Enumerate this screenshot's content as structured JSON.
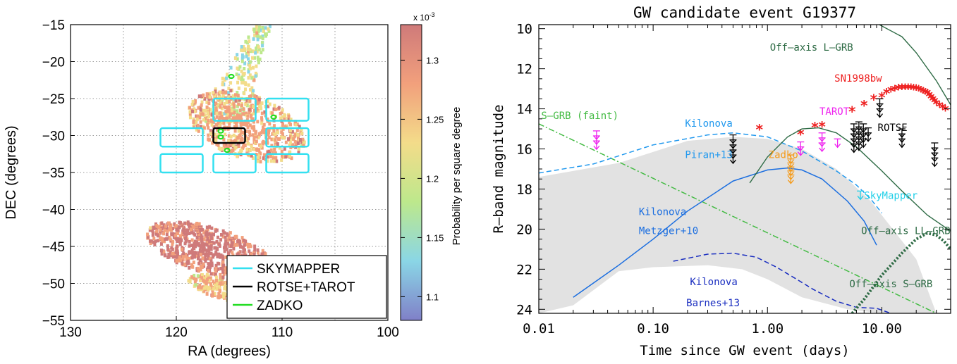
{
  "chart_data": [
    {
      "type": "heatmap",
      "xlabel": "RA (degrees)",
      "ylabel": "DEC (degrees)",
      "xlim": [
        130,
        100
      ],
      "ylim": [
        -55,
        -15
      ],
      "xticks": [
        "130",
        "120",
        "110",
        "100"
      ],
      "yticks": [
        "-15",
        "-20",
        "-25",
        "-30",
        "-35",
        "-40",
        "-45",
        "-50",
        "-55"
      ],
      "grid": true,
      "colorbar": {
        "label": "Probability per square degree",
        "exponent": "x 10",
        "exponent_power": "-3",
        "range": [
          1.08,
          1.33
        ],
        "ticks": [
          "1.3",
          "1.25",
          "1.2",
          "1.15",
          "1.1"
        ],
        "colors": [
          "#8080c8",
          "#8ad6e6",
          "#bde88c",
          "#f3dc8a",
          "#f2a07c",
          "#cf7a7a"
        ]
      },
      "probability_regions": [
        {
          "ra": [
            116,
            112
          ],
          "dec_centerline": [
            -28,
            -15
          ],
          "value": 1.2,
          "kind": "upper-streak"
        },
        {
          "ra": [
            119,
            108
          ],
          "dec": [
            -33,
            -24
          ],
          "value": 1.27,
          "kind": "central-blob"
        },
        {
          "ra": [
            123,
            111
          ],
          "dec": [
            -48.5,
            -42
          ],
          "value": 1.32,
          "kind": "lower-ellipse"
        },
        {
          "ra": [
            119,
            112
          ],
          "dec": [
            -52,
            -49
          ],
          "value": 1.25,
          "kind": "lower-small-ellipse"
        }
      ],
      "fields": [
        {
          "name": "SKYMAPPER",
          "color": "#33e0f0",
          "boxes": [
            [
              121.5,
              117.5,
              -31.5,
              -29
            ],
            [
              121.5,
              117.5,
              -35,
              -32.5
            ],
            [
              116.5,
              112.5,
              -28,
              -25
            ],
            [
              116.5,
              112.5,
              -35,
              -32.5
            ],
            [
              111.5,
              107.5,
              -31.5,
              -29
            ],
            [
              111.5,
              107.5,
              -35,
              -32.5
            ],
            [
              111.5,
              107.5,
              -28,
              -25
            ]
          ]
        },
        {
          "name": "ROTSE+TAROT",
          "color": "#000000",
          "boxes": [
            [
              116.5,
              113.5,
              -31,
              -29
            ]
          ]
        },
        {
          "name": "ZADKO",
          "color": "#22dd22",
          "points": [
            [
              114.8,
              -22
            ],
            [
              115.8,
              -29.4
            ],
            [
              115.8,
              -30.2
            ],
            [
              115.2,
              -32
            ],
            [
              110.8,
              -27.5
            ]
          ]
        }
      ],
      "legend": [
        "SKYMAPPER",
        "ROTSE+TAROT",
        "ZADKO"
      ],
      "legend_position": "bottom-right"
    },
    {
      "type": "line",
      "title": "GW candidate event G19377",
      "xlabel": "Time since GW event (days)",
      "ylabel": "R–band magnitude",
      "xscale": "log",
      "xlim": [
        0.01,
        40
      ],
      "ylim": [
        24.2,
        9.8
      ],
      "xticks": [
        "0.01",
        "0.10",
        "1.00",
        "10.00"
      ],
      "xtick_values": [
        0.01,
        0.1,
        1,
        10
      ],
      "yticks": [
        "10",
        "12",
        "14",
        "16",
        "18",
        "20",
        "22",
        "24"
      ],
      "ytick_values": [
        10,
        12,
        14,
        16,
        18,
        20,
        22,
        24
      ],
      "shaded_band": {
        "upper": [
          [
            0.01,
            17.4
          ],
          [
            0.05,
            16.7
          ],
          [
            0.2,
            15.6
          ],
          [
            0.5,
            15.4
          ],
          [
            1.0,
            15.5
          ],
          [
            2.0,
            16.0
          ],
          [
            4.0,
            17.0
          ],
          [
            8.0,
            18.6
          ],
          [
            20.0,
            21.5
          ],
          [
            30.0,
            24.2
          ]
        ],
        "lower": [
          [
            0.01,
            24.2
          ],
          [
            0.02,
            23.8
          ],
          [
            0.05,
            22.1
          ],
          [
            0.1,
            21.9
          ],
          [
            0.3,
            21.8
          ],
          [
            0.6,
            22.0
          ],
          [
            1.0,
            22.5
          ],
          [
            2.0,
            23.4
          ],
          [
            5.0,
            24.0
          ],
          [
            10.0,
            24.2
          ]
        ],
        "color": "#e2e2e2"
      },
      "series": [
        {
          "name": "Off-axis L-GRB",
          "style": "solid",
          "color": "#2e6b45",
          "points": [
            [
              9.5,
              9.8
            ],
            [
              15,
              10.4
            ],
            [
              20,
              11.2
            ],
            [
              30,
              12.6
            ],
            [
              40,
              13.8
            ]
          ]
        },
        {
          "name": "SN1998bw",
          "style": "star",
          "color": "#ee2222",
          "points": [
            [
              0.85,
              15.0
            ],
            [
              1.95,
              15.25
            ],
            [
              2.6,
              14.9
            ],
            [
              3.0,
              14.85
            ],
            [
              5.5,
              14.1
            ],
            [
              7.0,
              13.8
            ],
            [
              8.5,
              13.5
            ],
            [
              10,
              13.4
            ],
            [
              11,
              13.2
            ],
            [
              12,
              13.1
            ],
            [
              13,
              13.05
            ],
            [
              14,
              13.0
            ],
            [
              15,
              12.98
            ],
            [
              16,
              12.97
            ],
            [
              17,
              12.97
            ],
            [
              18,
              12.98
            ],
            [
              19,
              13.0
            ],
            [
              20,
              13.02
            ],
            [
              21,
              13.05
            ],
            [
              22,
              13.1
            ],
            [
              23,
              13.15
            ],
            [
              24,
              13.2
            ],
            [
              25,
              13.25
            ],
            [
              26,
              13.35
            ],
            [
              27,
              13.45
            ],
            [
              28,
              13.55
            ],
            [
              29,
              13.65
            ],
            [
              30,
              13.75
            ],
            [
              32,
              13.85
            ],
            [
              34,
              13.95
            ],
            [
              36,
              14.05
            ]
          ]
        },
        {
          "name": "S-GRB (faint)",
          "style": "dashdot",
          "color": "#44bb44",
          "points": [
            [
              0.01,
              14.75
            ],
            [
              30,
              24.2
            ]
          ]
        },
        {
          "name": "Kilonova Piran+13",
          "style": "dashed",
          "color": "#2299ee",
          "points": [
            [
              0.01,
              17.2
            ],
            [
              0.03,
              16.75
            ],
            [
              0.1,
              15.8
            ],
            [
              0.3,
              15.3
            ],
            [
              0.5,
              15.2
            ],
            [
              1.0,
              15.4
            ],
            [
              2.0,
              16.1
            ],
            [
              4.0,
              17.1
            ],
            [
              6.0,
              17.8
            ],
            [
              8.0,
              18.5
            ],
            [
              10.0,
              19.2
            ]
          ]
        },
        {
          "name": "Kilonova Metzger+10",
          "style": "solid",
          "color": "#1b6ee0",
          "points": [
            [
              0.02,
              23.4
            ],
            [
              0.05,
              21.8
            ],
            [
              0.1,
              20.5
            ],
            [
              0.2,
              19.1
            ],
            [
              0.5,
              17.6
            ],
            [
              1.0,
              17.05
            ],
            [
              1.5,
              16.95
            ],
            [
              2.0,
              17.05
            ],
            [
              3.0,
              17.5
            ],
            [
              5.0,
              18.6
            ],
            [
              7.0,
              19.6
            ],
            [
              9.0,
              20.8
            ]
          ]
        },
        {
          "name": "Kilonova Barnes+13",
          "style": "dashed",
          "color": "#1a2ec0",
          "points": [
            [
              0.15,
              21.6
            ],
            [
              0.3,
              21.25
            ],
            [
              0.5,
              21.2
            ],
            [
              0.8,
              21.4
            ],
            [
              1.2,
              21.9
            ],
            [
              1.8,
              22.5
            ],
            [
              2.5,
              23.0
            ],
            [
              4.0,
              23.6
            ],
            [
              6.0,
              23.9
            ],
            [
              9.0,
              23.95
            ],
            [
              12.0,
              24.2
            ]
          ]
        },
        {
          "name": "Off-axis LL-GRB",
          "style": "solid",
          "color": "#2e6b45",
          "points": [
            [
              0.7,
              17.7
            ],
            [
              1.0,
              16.4
            ],
            [
              1.5,
              15.4
            ],
            [
              2.0,
              15.0
            ],
            [
              2.8,
              14.95
            ],
            [
              4.0,
              15.2
            ],
            [
              6.0,
              15.9
            ],
            [
              10.0,
              17.1
            ],
            [
              15.0,
              18.1
            ],
            [
              25.0,
              19.3
            ],
            [
              40.0,
              20.1
            ]
          ]
        },
        {
          "name": "Off-axis S-GRB",
          "style": "dotted",
          "color": "#2e6b45",
          "points": [
            [
              5.5,
              24.2
            ],
            [
              7.0,
              23.5
            ],
            [
              10.0,
              22.3
            ],
            [
              15.0,
              21.2
            ],
            [
              20.0,
              20.5
            ],
            [
              25.0,
              20.2
            ],
            [
              30.0,
              20.3
            ],
            [
              35.0,
              20.6
            ],
            [
              40.0,
              21.0
            ]
          ]
        }
      ],
      "upper_limits": [
        {
          "name": "TAROT",
          "color": "#ee22ee",
          "points": [
            [
              0.032,
              15.1
            ],
            [
              0.032,
              15.35
            ],
            [
              0.032,
              15.6
            ],
            [
              1.95,
              15.65
            ],
            [
              1.95,
              15.9
            ],
            [
              3.0,
              15.2
            ],
            [
              3.0,
              15.45
            ],
            [
              3.0,
              15.7
            ],
            [
              4.1,
              15.5
            ]
          ]
        },
        {
          "name": "ROTSE",
          "color": "#000000",
          "points": [
            [
              0.5,
              15.3
            ],
            [
              0.5,
              15.55
            ],
            [
              0.5,
              15.8
            ],
            [
              0.5,
              16.05
            ],
            [
              0.5,
              16.3
            ],
            [
              5.7,
              14.75
            ],
            [
              5.7,
              15.0
            ],
            [
              5.7,
              15.25
            ],
            [
              5.7,
              15.5
            ],
            [
              5.7,
              15.75
            ],
            [
              6.3,
              14.65
            ],
            [
              6.3,
              14.9
            ],
            [
              6.3,
              15.15
            ],
            [
              6.3,
              15.4
            ],
            [
              6.3,
              15.65
            ],
            [
              6.9,
              14.75
            ],
            [
              6.9,
              15.0
            ],
            [
              6.9,
              15.25
            ],
            [
              6.9,
              15.5
            ],
            [
              7.6,
              14.95
            ],
            [
              7.6,
              15.2
            ],
            [
              9.6,
              13.5
            ],
            [
              9.6,
              13.75
            ],
            [
              9.6,
              14.0
            ],
            [
              15.0,
              15.0
            ],
            [
              15.0,
              15.25
            ],
            [
              15.0,
              15.5
            ],
            [
              29,
              15.7
            ],
            [
              29,
              15.95
            ],
            [
              29,
              16.2
            ],
            [
              29,
              16.45
            ]
          ]
        },
        {
          "name": "Zadko",
          "color": "#f59b1a",
          "points": [
            [
              1.6,
              16.3
            ],
            [
              1.6,
              16.5
            ],
            [
              1.6,
              16.7
            ],
            [
              1.6,
              16.9
            ],
            [
              1.6,
              17.1
            ],
            [
              1.6,
              17.3
            ]
          ]
        },
        {
          "name": "SkyMapper",
          "color": "#22d0e8",
          "points": [
            [
              6.5,
              18.1
            ]
          ]
        }
      ],
      "annotations": [
        {
          "text": "Off–axis L–GRB",
          "x": 1.05,
          "y": 11.1,
          "color": "#2e6b45"
        },
        {
          "text": "SN1998bw",
          "x": 3.85,
          "y": 12.65,
          "color": "#ee2222"
        },
        {
          "text": "TAROT",
          "x": 2.85,
          "y": 14.3,
          "color": "#ee22ee"
        },
        {
          "text": "ROTSE",
          "x": 9.2,
          "y": 15.1,
          "color": "#000000"
        },
        {
          "text": "S–GRB (faint)",
          "x": 0.0105,
          "y": 14.5,
          "color": "#44bb44"
        },
        {
          "text": "Kilonova",
          "x": 0.19,
          "y": 14.9,
          "color": "#2299ee"
        },
        {
          "text": "Piran+13",
          "x": 0.19,
          "y": 16.45,
          "color": "#2299ee"
        },
        {
          "text": "Zadko",
          "x": 1.02,
          "y": 16.45,
          "color": "#f59b1a"
        },
        {
          "text": "SkyMapper",
          "x": 7.0,
          "y": 18.5,
          "color": "#22d0e8"
        },
        {
          "text": "Kilonova",
          "x": 0.075,
          "y": 19.3,
          "color": "#1b6ee0"
        },
        {
          "text": "Metzger+10",
          "x": 0.075,
          "y": 20.25,
          "color": "#1b6ee0"
        },
        {
          "text": "Off–axis LL–GRB",
          "x": 6.6,
          "y": 20.25,
          "color": "#2e6b45"
        },
        {
          "text": "Off–axis S–GRB",
          "x": 5.2,
          "y": 22.9,
          "color": "#2e6b45"
        },
        {
          "text": "Kilonova",
          "x": 0.21,
          "y": 22.8,
          "color": "#1a2ec0"
        },
        {
          "text": "Barnes+13",
          "x": 0.195,
          "y": 23.85,
          "color": "#1a2ec0"
        }
      ]
    }
  ]
}
